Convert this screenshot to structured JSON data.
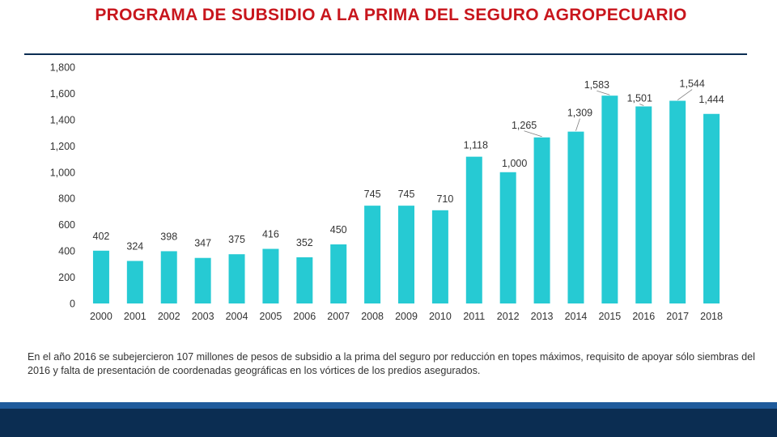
{
  "title": "PROGRAMA DE SUBSIDIO A LA PRIMA DEL SEGURO AGROPECUARIO",
  "footnote": "En el año 2016 se subejercieron 107 millones de pesos de subsidio a la prima del seguro por reducción en topes máximos, requisito de apoyar sólo siembras del 2016 y falta de presentación de coordenadas geográficas en los vórtices de los predios asegurados.",
  "colors": {
    "title": "#c8161d",
    "bar": "#26cad3",
    "footer_light": "#1f5b9c",
    "footer_dark": "#0b2d52",
    "text": "#333333"
  },
  "chart_data": {
    "type": "bar",
    "title": "PROGRAMA DE SUBSIDIO A LA PRIMA DEL SEGURO AGROPECUARIO",
    "xlabel": "",
    "ylabel": "",
    "ylim": [
      0,
      1800
    ],
    "yticks": [
      0,
      200,
      400,
      600,
      800,
      1000,
      1200,
      1400,
      1600,
      1800
    ],
    "ytick_labels": [
      "0",
      "200",
      "400",
      "600",
      "800",
      "1,000",
      "1,200",
      "1,400",
      "1,600",
      "1,800"
    ],
    "grid": false,
    "categories": [
      "2000",
      "2001",
      "2002",
      "2003",
      "2004",
      "2005",
      "2006",
      "2007",
      "2008",
      "2009",
      "2010",
      "2011",
      "2012",
      "2013",
      "2014",
      "2015",
      "2016",
      "2017",
      "2018"
    ],
    "values": [
      402,
      324,
      398,
      347,
      375,
      416,
      352,
      450,
      745,
      745,
      710,
      1118,
      1000,
      1265,
      1309,
      1583,
      1501,
      1544,
      1444
    ],
    "value_labels": [
      "402",
      "324",
      "398",
      "347",
      "375",
      "416",
      "352",
      "450",
      "745",
      "745",
      "710",
      "1,118",
      "1,000",
      "1,265",
      "1,309",
      "1,583",
      "1,501",
      "1,544",
      "1,444"
    ]
  }
}
